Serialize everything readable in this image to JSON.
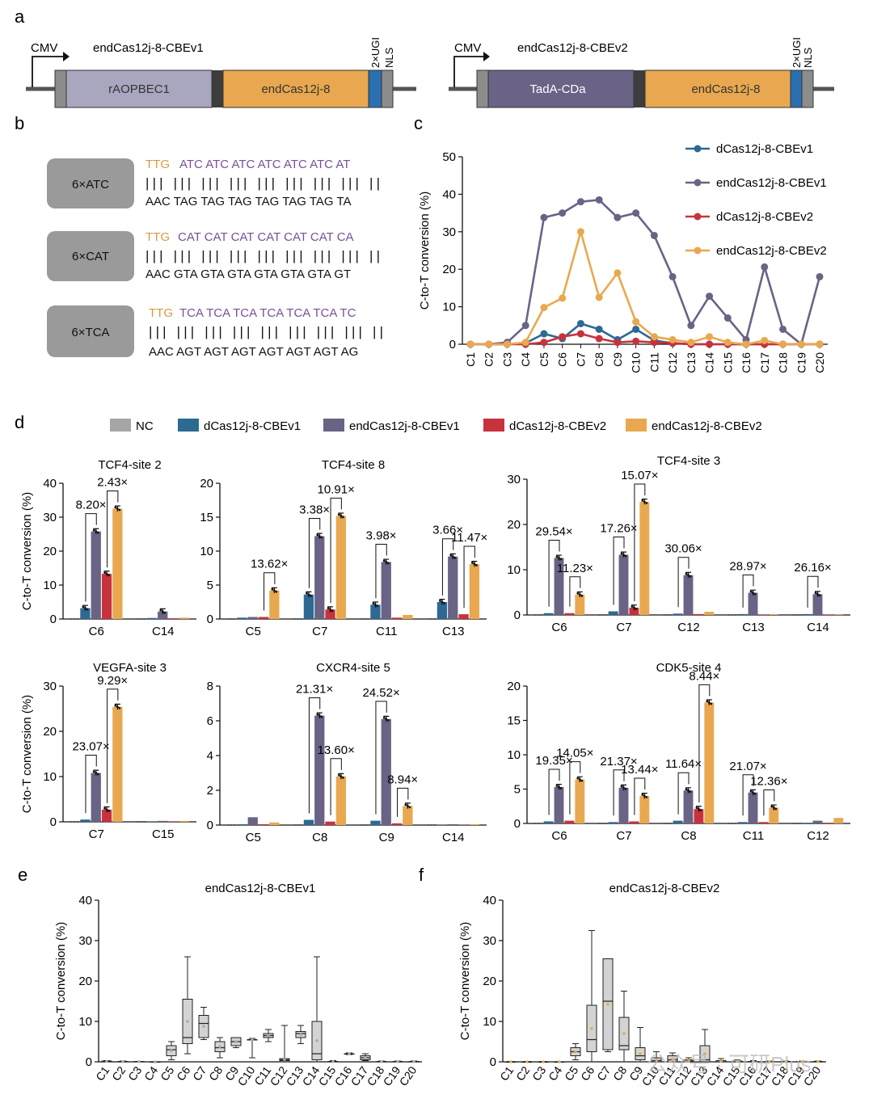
{
  "panel_labels": {
    "a": "a",
    "b": "b",
    "c": "c",
    "d": "d",
    "e": "e",
    "f": "f"
  },
  "colors": {
    "nc": "#a6a6a6",
    "dv1": "#2c6a93",
    "endv1": "#6a6385",
    "dv2": "#c8323d",
    "endv2": "#e9a84f",
    "gray_box": "#9a9a9a",
    "aopbec": "#a9a6c0",
    "tadacda": "#6a6385",
    "cas": "#e9a84f",
    "nls": "#2a6fb0",
    "purple_text": "#7a4f9a",
    "orange_text": "#d99a40"
  },
  "panel_a": {
    "constructs": [
      {
        "promoter": "CMV",
        "title": "endCas12j-8-CBEv1",
        "deaminase": "rAOPBEC1",
        "cas": "endCas12j-8",
        "ugi": "2×UGI",
        "nls": "NLS"
      },
      {
        "promoter": "CMV",
        "title": "endCas12j-8-CBEv2",
        "deaminase": "TadA-CDa",
        "cas": "endCas12j-8",
        "ugi": "2×UGI",
        "nls": "NLS"
      }
    ]
  },
  "panel_b": {
    "targets": [
      {
        "label": "6×ATC",
        "pam": "TTG",
        "top": "ATC ATC ATC ATC ATC ATC AT",
        "bars": "|||  |||  |||  |||  |||  |||  |||  |||  ||",
        "bottom": "AAC TAG TAG TAG TAG TAG TAG TA"
      },
      {
        "label": "6×CAT",
        "pam": "TTG",
        "top": "CAT CAT CAT CAT CAT CAT CA",
        "bars": "|||  |||  |||  |||  |||  |||  |||  |||  ||",
        "bottom": "AAC GTA GTA GTA GTA GTA GTA GT"
      },
      {
        "label": "6×TCA",
        "pam": "TTG",
        "top": "TCA TCA TCA TCA TCA TCA TC",
        "bars": "|||  |||  |||  |||  |||  |||  |||  |||  ||",
        "bottom": "AAC AGT AGT AGT AGT AGT AGT AG"
      }
    ]
  },
  "legend_d": [
    "NC",
    "dCas12j-8-CBEv1",
    "endCas12j-8-CBEv1",
    "dCas12j-8-CBEv2",
    "endCas12j-8-CBEv2"
  ],
  "watermark": "公众号 · 可研Plus",
  "chart_data": [
    {
      "id": "c",
      "type": "line",
      "title": "",
      "xlabel": "",
      "ylabel": "C-to-T conversion (%)",
      "ylim": [
        0,
        50
      ],
      "yticks": [
        0,
        10,
        20,
        30,
        40,
        50
      ],
      "categories": [
        "C1",
        "C2",
        "C3",
        "C4",
        "C5",
        "C6",
        "C7",
        "C8",
        "C9",
        "C10",
        "C11",
        "C12",
        "C13",
        "C14",
        "C15",
        "C16",
        "C17",
        "C18",
        "C19",
        "C20"
      ],
      "series": [
        {
          "name": "dCas12j-8-CBEv1",
          "color": "#2c6a93",
          "values": [
            0,
            0,
            0,
            0.3,
            2.8,
            1.5,
            5.5,
            4,
            1.2,
            4,
            1,
            0.3,
            0,
            0,
            0,
            0,
            0,
            0,
            0,
            0
          ]
        },
        {
          "name": "endCas12j-8-CBEv1",
          "color": "#6a6385",
          "values": [
            0,
            0,
            0.5,
            5,
            33.8,
            35,
            38,
            38.5,
            33.8,
            35,
            29,
            18,
            5,
            12.8,
            7,
            1.2,
            20.6,
            4,
            0,
            18
          ]
        },
        {
          "name": "dCas12j-8-CBEv2",
          "color": "#c8323d",
          "values": [
            0,
            0,
            0,
            0,
            0.5,
            2,
            2.8,
            1.5,
            0.5,
            0.8,
            0.5,
            0.3,
            0,
            0,
            0,
            0,
            0,
            0,
            0,
            0
          ]
        },
        {
          "name": "endCas12j-8-CBEv2",
          "color": "#e9a84f",
          "values": [
            0,
            0,
            0,
            0.5,
            9.8,
            12.3,
            30,
            12.5,
            19,
            6,
            2,
            1.2,
            0.5,
            2,
            0.5,
            0,
            1,
            0,
            0,
            0
          ]
        }
      ]
    },
    {
      "id": "d1",
      "type": "bar",
      "title": "TCF4-site 2",
      "ylabel": "C-to-T conversion (%)",
      "ylim": [
        0,
        40
      ],
      "yticks": [
        0,
        10,
        20,
        30,
        40
      ],
      "categories": [
        "C6",
        "C14"
      ],
      "series": [
        {
          "name": "NC",
          "values": [
            0,
            0
          ]
        },
        {
          "name": "dCas12j-8-CBEv1",
          "values": [
            3.2,
            0.3
          ]
        },
        {
          "name": "endCas12j-8-CBEv1",
          "values": [
            25.8,
            2.2
          ]
        },
        {
          "name": "dCas12j-8-CBEv2",
          "values": [
            13.3,
            0.2
          ]
        },
        {
          "name": "endCas12j-8-CBEv2",
          "values": [
            32.5,
            0.4
          ]
        }
      ],
      "annotations": [
        {
          "cat": 0,
          "from": 1,
          "to": 2,
          "label": "8.20×"
        },
        {
          "cat": 0,
          "from": 3,
          "to": 4,
          "label": "2.43×"
        }
      ]
    },
    {
      "id": "d2",
      "type": "bar",
      "title": "TCF4-site 8",
      "ylabel": "",
      "ylim": [
        0,
        20
      ],
      "yticks": [
        0,
        5,
        10,
        15,
        20
      ],
      "categories": [
        "C5",
        "C7",
        "C11",
        "C13"
      ],
      "series": [
        {
          "name": "NC",
          "values": [
            0,
            0,
            0,
            0
          ]
        },
        {
          "name": "dCas12j-8-CBEv1",
          "values": [
            0.2,
            3.6,
            2.1,
            2.5
          ]
        },
        {
          "name": "endCas12j-8-CBEv1",
          "values": [
            0.3,
            12.2,
            8.4,
            9.2
          ]
        },
        {
          "name": "dCas12j-8-CBEv2",
          "values": [
            0.3,
            1.4,
            0.2,
            0.7
          ]
        },
        {
          "name": "endCas12j-8-CBEv2",
          "values": [
            4.2,
            15.2,
            0.6,
            8.1
          ]
        }
      ],
      "annotations": [
        {
          "cat": 0,
          "from": 3,
          "to": 4,
          "label": "13.62×"
        },
        {
          "cat": 1,
          "from": 1,
          "to": 2,
          "label": "3.38×"
        },
        {
          "cat": 1,
          "from": 3,
          "to": 4,
          "label": "10.91×"
        },
        {
          "cat": 2,
          "from": 1,
          "to": 2,
          "label": "3.98×"
        },
        {
          "cat": 3,
          "from": 1,
          "to": 2,
          "label": "3.66×"
        },
        {
          "cat": 3,
          "from": 3,
          "to": 4,
          "label": "11.47×"
        }
      ]
    },
    {
      "id": "d3",
      "type": "bar",
      "title": "TCF4-site 3",
      "ylabel": "",
      "ylim": [
        0,
        30
      ],
      "yticks": [
        0,
        10,
        20,
        30
      ],
      "categories": [
        "C6",
        "C7",
        "C12",
        "C13",
        "C14"
      ],
      "series": [
        {
          "name": "NC",
          "values": [
            0,
            0,
            0,
            0,
            0
          ]
        },
        {
          "name": "dCas12j-8-CBEv1",
          "values": [
            0.4,
            0.8,
            0.3,
            0.2,
            0.2
          ]
        },
        {
          "name": "endCas12j-8-CBEv1",
          "values": [
            12.6,
            13.3,
            8.8,
            4.9,
            4.6
          ]
        },
        {
          "name": "dCas12j-8-CBEv2",
          "values": [
            0.4,
            1.6,
            0.2,
            0.1,
            0.1
          ]
        },
        {
          "name": "endCas12j-8-CBEv2",
          "values": [
            4.5,
            25,
            0.7,
            0.2,
            0.2
          ]
        }
      ],
      "annotations": [
        {
          "cat": 0,
          "from": 1,
          "to": 2,
          "label": "29.54×"
        },
        {
          "cat": 0,
          "from": 3,
          "to": 4,
          "label": "11.23×"
        },
        {
          "cat": 1,
          "from": 1,
          "to": 2,
          "label": "17.26×"
        },
        {
          "cat": 1,
          "from": 3,
          "to": 4,
          "label": "15.07×"
        },
        {
          "cat": 2,
          "from": 1,
          "to": 2,
          "label": "30.06×"
        },
        {
          "cat": 3,
          "from": 1,
          "to": 2,
          "label": "28.97×"
        },
        {
          "cat": 4,
          "from": 1,
          "to": 2,
          "label": "26.16×"
        }
      ]
    },
    {
      "id": "d4",
      "type": "bar",
      "title": "VEGFA-site 3",
      "ylabel": "C-to-T conversion (%)",
      "ylim": [
        0,
        30
      ],
      "yticks": [
        0,
        10,
        20,
        30
      ],
      "categories": [
        "C7",
        "C15"
      ],
      "series": [
        {
          "name": "NC",
          "values": [
            0,
            0
          ]
        },
        {
          "name": "dCas12j-8-CBEv1",
          "values": [
            0.5,
            0.1
          ]
        },
        {
          "name": "endCas12j-8-CBEv1",
          "values": [
            10.8,
            0.2
          ]
        },
        {
          "name": "dCas12j-8-CBEv2",
          "values": [
            2.7,
            0.1
          ]
        },
        {
          "name": "endCas12j-8-CBEv2",
          "values": [
            25.4,
            0.2
          ]
        }
      ],
      "annotations": [
        {
          "cat": 0,
          "from": 1,
          "to": 2,
          "label": "23.07×"
        },
        {
          "cat": 0,
          "from": 3,
          "to": 4,
          "label": "9.29×"
        }
      ]
    },
    {
      "id": "d5",
      "type": "bar",
      "title": "CXCR4-site 5",
      "ylabel": "",
      "ylim": [
        0,
        8
      ],
      "yticks": [
        0,
        2,
        4,
        6,
        8
      ],
      "categories": [
        "C5",
        "C8",
        "C9",
        "C14"
      ],
      "series": [
        {
          "name": "NC",
          "values": [
            0,
            0,
            0,
            0
          ]
        },
        {
          "name": "dCas12j-8-CBEv1",
          "values": [
            0.05,
            0.3,
            0.25,
            0.02
          ]
        },
        {
          "name": "endCas12j-8-CBEv1",
          "values": [
            0.45,
            6.3,
            6.1,
            0.05
          ]
        },
        {
          "name": "dCas12j-8-CBEv2",
          "values": [
            0.05,
            0.2,
            0.1,
            0.02
          ]
        },
        {
          "name": "endCas12j-8-CBEv2",
          "values": [
            0.15,
            2.8,
            1.1,
            0.05
          ]
        }
      ],
      "annotations": [
        {
          "cat": 1,
          "from": 1,
          "to": 2,
          "label": "21.31×"
        },
        {
          "cat": 1,
          "from": 3,
          "to": 4,
          "label": "13.60×"
        },
        {
          "cat": 2,
          "from": 1,
          "to": 2,
          "label": "24.52×"
        },
        {
          "cat": 2,
          "from": 3,
          "to": 4,
          "label": "8.94×"
        }
      ]
    },
    {
      "id": "d6",
      "type": "bar",
      "title": "CDK5-site 4",
      "ylabel": "",
      "ylim": [
        0,
        20
      ],
      "yticks": [
        0,
        5,
        10,
        15,
        20
      ],
      "categories": [
        "C6",
        "C7",
        "C8",
        "C11",
        "C12"
      ],
      "series": [
        {
          "name": "NC",
          "values": [
            0,
            0,
            0,
            0,
            0
          ]
        },
        {
          "name": "dCas12j-8-CBEv1",
          "values": [
            0.3,
            0.2,
            0.4,
            0.2,
            0.1
          ]
        },
        {
          "name": "endCas12j-8-CBEv1",
          "values": [
            5.3,
            5.2,
            4.8,
            4.5,
            0.4
          ]
        },
        {
          "name": "dCas12j-8-CBEv2",
          "values": [
            0.4,
            0.3,
            2.1,
            0.2,
            0.1
          ]
        },
        {
          "name": "endCas12j-8-CBEv2",
          "values": [
            6.4,
            4,
            17.6,
            2.3,
            0.8
          ]
        }
      ],
      "annotations": [
        {
          "cat": 0,
          "from": 1,
          "to": 2,
          "label": "19.35×"
        },
        {
          "cat": 0,
          "from": 3,
          "to": 4,
          "label": "14.05×"
        },
        {
          "cat": 1,
          "from": 1,
          "to": 2,
          "label": "21.37×"
        },
        {
          "cat": 1,
          "from": 3,
          "to": 4,
          "label": "13.44×"
        },
        {
          "cat": 2,
          "from": 1,
          "to": 2,
          "label": "11.64×"
        },
        {
          "cat": 2,
          "from": 3,
          "to": 4,
          "label": "8.44×"
        },
        {
          "cat": 3,
          "from": 1,
          "to": 2,
          "label": "21.07×"
        },
        {
          "cat": 3,
          "from": 3,
          "to": 4,
          "label": "12.36×"
        }
      ]
    },
    {
      "id": "e",
      "type": "box",
      "title": "endCas12j-8-CBEv1",
      "ylabel": "C-to-T conversion (%)",
      "ylim": [
        0,
        40
      ],
      "yticks": [
        0,
        10,
        20,
        30,
        40
      ],
      "dot_color": "#aaaaaa",
      "categories": [
        "C1",
        "C2",
        "C3",
        "C4",
        "C5",
        "C6",
        "C7",
        "C8",
        "C9",
        "C10",
        "C11",
        "C12",
        "C13",
        "C14",
        "C15",
        "C16",
        "C17",
        "C18",
        "C19",
        "C20"
      ],
      "boxes": [
        [
          0,
          0,
          0.1,
          0.2,
          0.3
        ],
        [
          0,
          0,
          0,
          0.1,
          0.2
        ],
        [
          0,
          0,
          0,
          0.1,
          0.1
        ],
        [
          0,
          0,
          0,
          0,
          0
        ],
        [
          0.5,
          1.5,
          3,
          4,
          5
        ],
        [
          2,
          4.5,
          6,
          15.5,
          26
        ],
        [
          5.5,
          6,
          9.5,
          11.5,
          13.5
        ],
        [
          1,
          2.5,
          3.5,
          5,
          6
        ],
        [
          3.5,
          4,
          5,
          6,
          6
        ],
        [
          1,
          5.5,
          5.5,
          5.5,
          5.8
        ],
        [
          5,
          6,
          6.5,
          7,
          8
        ],
        [
          0,
          0.3,
          0.5,
          0.8,
          9
        ],
        [
          4.5,
          6,
          7,
          7.5,
          9
        ],
        [
          0,
          0.5,
          2,
          10,
          26
        ],
        [
          0,
          0,
          0,
          0.1,
          0.3
        ],
        [
          1.8,
          2,
          2,
          2,
          2.2
        ],
        [
          0.3,
          0.5,
          1,
          1.5,
          2
        ],
        [
          0,
          0,
          0,
          0.1,
          0.2
        ],
        [
          0,
          0,
          0,
          0.1,
          0.2
        ],
        [
          0,
          0,
          0,
          0.1,
          0.2
        ]
      ]
    },
    {
      "id": "f",
      "type": "box",
      "title": "endCas12j-8-CBEv2",
      "ylabel": "C-to-T conversion (%)",
      "ylim": [
        0,
        40
      ],
      "yticks": [
        0,
        10,
        20,
        30,
        40
      ],
      "dot_color": "#e9a84f",
      "categories": [
        "C1",
        "C2",
        "C3",
        "C4",
        "C5",
        "C6",
        "C7",
        "C8",
        "C9",
        "C10",
        "C11",
        "C12",
        "C13",
        "C14",
        "C15",
        "C16",
        "C17",
        "C18",
        "C19",
        "C20"
      ],
      "boxes": [
        [
          0,
          0,
          0,
          0,
          0.1
        ],
        [
          0,
          0,
          0,
          0,
          0.1
        ],
        [
          0,
          0,
          0,
          0,
          0.1
        ],
        [
          0,
          0,
          0,
          0,
          0
        ],
        [
          0.5,
          1.5,
          2.5,
          3.5,
          4.5
        ],
        [
          0,
          2.5,
          5.5,
          14,
          32.5
        ],
        [
          2.5,
          3,
          15,
          25.5,
          25.5
        ],
        [
          0,
          3,
          4,
          11,
          17.5
        ],
        [
          0,
          0.5,
          1.5,
          3.5,
          8.5
        ],
        [
          0,
          0,
          0.3,
          1,
          2.5
        ],
        [
          0,
          0,
          0.5,
          1.5,
          2.2
        ],
        [
          0,
          0,
          0.2,
          0.5,
          1
        ],
        [
          0,
          0,
          0.5,
          4,
          8
        ],
        [
          0,
          0,
          0,
          0.3,
          0.8
        ],
        [
          0,
          0,
          0,
          0.2,
          0.5
        ],
        [
          0,
          0,
          0,
          0.1,
          0.3
        ],
        [
          0,
          0,
          0,
          0.1,
          0.2
        ],
        [
          0,
          0,
          0,
          0.1,
          0.2
        ],
        [
          0,
          0,
          0,
          0.1,
          0.2
        ],
        [
          0,
          0,
          0,
          0.1,
          0.2
        ]
      ]
    }
  ]
}
